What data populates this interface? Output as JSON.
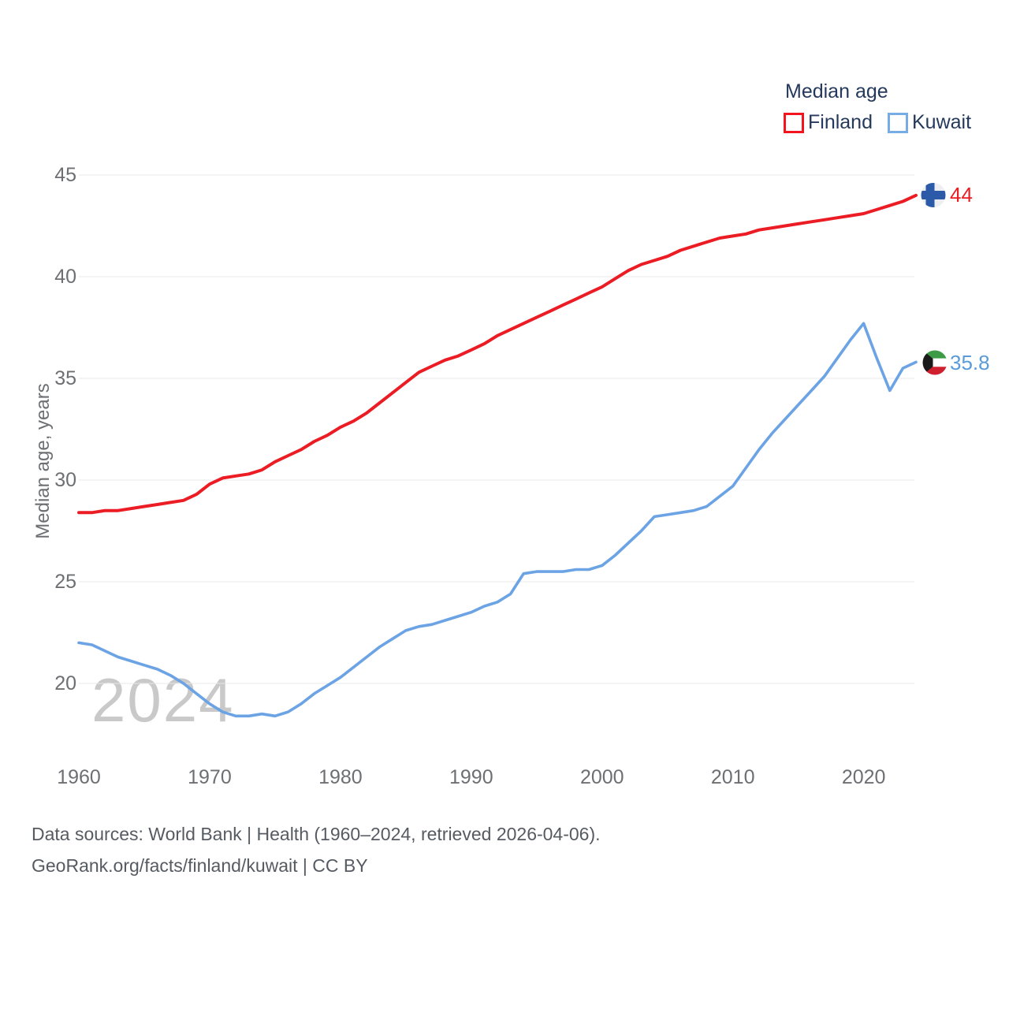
{
  "legend": {
    "title": "Median age",
    "series": [
      {
        "label": "Finland",
        "color": "#ec1c24"
      },
      {
        "label": "Kuwait",
        "color": "#6ba3e5"
      }
    ]
  },
  "y_axis": {
    "title": "Median age, years",
    "ticks": [
      20,
      25,
      30,
      35,
      40,
      45
    ]
  },
  "x_axis": {
    "ticks": [
      1960,
      1970,
      1980,
      1990,
      2000,
      2010,
      2020
    ]
  },
  "watermark": {
    "text": "2024"
  },
  "end_labels": {
    "finland": {
      "value": "44"
    },
    "kuwait": {
      "value": "35.8"
    }
  },
  "footer": {
    "line1": "Data sources: World Bank | Health (1960–2024, retrieved 2026-04-06).",
    "line2": "GeoRank.org/facts/finland/kuwait | CC BY"
  },
  "chart_data": {
    "type": "line",
    "title": "Median age",
    "xlabel": "",
    "ylabel": "Median age, years",
    "xlim": [
      1960,
      2024
    ],
    "ylim": [
      18,
      45
    ],
    "yticks": [
      20,
      25,
      30,
      35,
      40,
      45
    ],
    "xticks": [
      1960,
      1970,
      1980,
      1990,
      2000,
      2010,
      2020
    ],
    "grid": "horizontal",
    "legend_position": "top-right",
    "x": [
      1960,
      1961,
      1962,
      1963,
      1964,
      1965,
      1966,
      1967,
      1968,
      1969,
      1970,
      1971,
      1972,
      1973,
      1974,
      1975,
      1976,
      1977,
      1978,
      1979,
      1980,
      1981,
      1982,
      1983,
      1984,
      1985,
      1986,
      1987,
      1988,
      1989,
      1990,
      1991,
      1992,
      1993,
      1994,
      1995,
      1996,
      1997,
      1998,
      1999,
      2000,
      2001,
      2002,
      2003,
      2004,
      2005,
      2006,
      2007,
      2008,
      2009,
      2010,
      2011,
      2012,
      2013,
      2014,
      2015,
      2016,
      2017,
      2018,
      2019,
      2020,
      2021,
      2022,
      2023,
      2024
    ],
    "series": [
      {
        "name": "Finland",
        "color": "#ec1c24",
        "end_label": "44",
        "values": [
          28.4,
          28.4,
          28.5,
          28.5,
          28.6,
          28.7,
          28.8,
          28.9,
          29.0,
          29.3,
          29.8,
          30.1,
          30.2,
          30.3,
          30.5,
          30.9,
          31.2,
          31.5,
          31.9,
          32.2,
          32.6,
          32.9,
          33.3,
          33.8,
          34.3,
          34.8,
          35.3,
          35.6,
          35.9,
          36.1,
          36.4,
          36.7,
          37.1,
          37.4,
          37.7,
          38.0,
          38.3,
          38.6,
          38.9,
          39.2,
          39.5,
          39.9,
          40.3,
          40.6,
          40.8,
          41.0,
          41.3,
          41.5,
          41.7,
          41.9,
          42.0,
          42.1,
          42.3,
          42.4,
          42.5,
          42.6,
          42.7,
          42.8,
          42.9,
          43.0,
          43.1,
          43.3,
          43.5,
          43.7,
          44.0
        ]
      },
      {
        "name": "Kuwait",
        "color": "#6ba3e5",
        "end_label": "35.8",
        "values": [
          22.0,
          21.9,
          21.6,
          21.3,
          21.1,
          20.9,
          20.7,
          20.4,
          20.0,
          19.5,
          19.0,
          18.6,
          18.4,
          18.4,
          18.5,
          18.4,
          18.6,
          19.0,
          19.5,
          19.9,
          20.3,
          20.8,
          21.3,
          21.8,
          22.2,
          22.6,
          22.8,
          22.9,
          23.1,
          23.3,
          23.5,
          23.8,
          24.0,
          24.4,
          25.4,
          25.5,
          25.5,
          25.5,
          25.6,
          25.6,
          25.8,
          26.3,
          26.9,
          27.5,
          28.2,
          28.3,
          28.4,
          28.5,
          28.7,
          29.2,
          29.7,
          30.6,
          31.5,
          32.3,
          33.0,
          33.7,
          34.4,
          35.1,
          36.0,
          36.9,
          37.7,
          36.0,
          34.4,
          35.5,
          35.8
        ]
      }
    ]
  }
}
